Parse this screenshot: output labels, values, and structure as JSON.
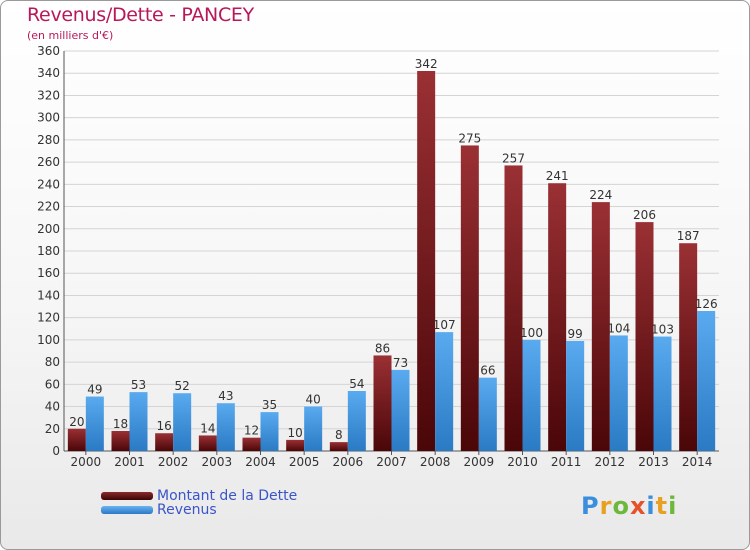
{
  "header": {
    "title": "Revenus/Dette - PANCEY",
    "subtitle": "(en milliers d'€)"
  },
  "chart_data": {
    "type": "bar",
    "title": "Revenus/Dette - PANCEY",
    "ylabel": "(en milliers d'€)",
    "xlabel": "",
    "categories": [
      "2000",
      "2001",
      "2002",
      "2003",
      "2004",
      "2005",
      "2006",
      "2007",
      "2008",
      "2009",
      "2010",
      "2011",
      "2012",
      "2013",
      "2014"
    ],
    "series": [
      {
        "name": "Montant de la Dette",
        "color": "#7a1a1e",
        "values": [
          20,
          18,
          16,
          14,
          12,
          10,
          8,
          86,
          342,
          275,
          257,
          241,
          224,
          206,
          187
        ]
      },
      {
        "name": "Revenus",
        "color": "#3a8fdc",
        "values": [
          49,
          53,
          52,
          43,
          35,
          40,
          54,
          73,
          107,
          66,
          100,
          99,
          104,
          103,
          126
        ]
      }
    ],
    "ylim": [
      0,
      360
    ],
    "yticks": [
      0,
      20,
      40,
      60,
      80,
      100,
      120,
      140,
      160,
      180,
      200,
      220,
      240,
      260,
      280,
      300,
      320,
      340,
      360
    ],
    "grid": true,
    "legend_position": "bottom-left"
  },
  "legend": {
    "items": [
      {
        "label": "Montant de la Dette",
        "color": "#5c0f10"
      },
      {
        "label": "Revenus",
        "color": "#3a8fdc"
      }
    ]
  },
  "logo": {
    "letters": [
      "P",
      "r",
      "o",
      "x",
      "i",
      "t",
      "i"
    ],
    "colors": [
      "#3a8fdc",
      "#e8a020",
      "#6cb83a",
      "#e8502a",
      "#3a8fdc",
      "#e8a020",
      "#6cb83a"
    ]
  }
}
